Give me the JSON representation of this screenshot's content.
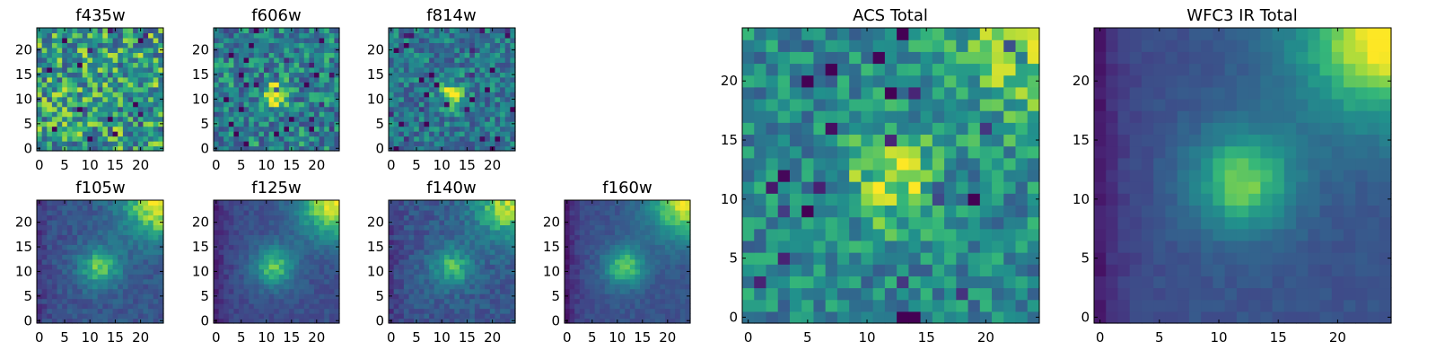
{
  "chart_data": [
    {
      "type": "heatmap",
      "title": "f435w",
      "colormap": "viridis",
      "grid": false,
      "xlim": [
        -0.5,
        24.5
      ],
      "ylim": [
        -0.5,
        24.5
      ],
      "xticks": [
        0,
        5,
        10,
        15,
        20
      ],
      "yticks": [
        0,
        5,
        10,
        15,
        20
      ],
      "pattern": {
        "bg": 0.62,
        "noise": 0.32,
        "blob_amp": 0.0,
        "blob_x": 12,
        "blob_y": 11,
        "blob_sigma": 3.0,
        "grad": [
          0.0,
          0.0
        ],
        "left_dark": 0.0,
        "seed": 11
      }
    },
    {
      "type": "heatmap",
      "title": "f606w",
      "colormap": "viridis",
      "grid": false,
      "xlim": [
        -0.5,
        24.5
      ],
      "ylim": [
        -0.5,
        24.5
      ],
      "xticks": [
        0,
        5,
        10,
        15,
        20
      ],
      "yticks": [
        0,
        5,
        10,
        15,
        20
      ],
      "pattern": {
        "bg": 0.52,
        "noise": 0.26,
        "blob_amp": 0.45,
        "blob_x": 11.5,
        "blob_y": 11,
        "blob_sigma": 1.8,
        "grad": [
          0.0,
          0.0
        ],
        "left_dark": 0.0,
        "seed": 23
      }
    },
    {
      "type": "heatmap",
      "title": "f814w",
      "colormap": "viridis",
      "grid": false,
      "xlim": [
        -0.5,
        24.5
      ],
      "ylim": [
        -0.5,
        24.5
      ],
      "xticks": [
        0,
        5,
        10,
        15,
        20
      ],
      "yticks": [
        0,
        5,
        10,
        15,
        20
      ],
      "pattern": {
        "bg": 0.48,
        "noise": 0.22,
        "blob_amp": 0.5,
        "blob_x": 12,
        "blob_y": 11,
        "blob_sigma": 1.8,
        "grad": [
          0.0,
          0.0
        ],
        "left_dark": 0.0,
        "seed": 37
      }
    },
    {
      "type": "heatmap",
      "title": "f105w",
      "colormap": "viridis",
      "grid": false,
      "xlim": [
        -0.5,
        24.5
      ],
      "ylim": [
        -0.5,
        24.5
      ],
      "xticks": [
        0,
        5,
        10,
        15,
        20
      ],
      "yticks": [
        0,
        5,
        10,
        15,
        20
      ],
      "pattern": {
        "bg": 0.33,
        "noise": 0.09,
        "blob_amp": 0.48,
        "blob_x": 12,
        "blob_y": 11,
        "blob_sigma": 3.0,
        "grad": [
          0.02,
          0.02
        ],
        "corner_amp": 0.65,
        "left_dark": 0.12,
        "seed": 41
      }
    },
    {
      "type": "heatmap",
      "title": "f125w",
      "colormap": "viridis",
      "grid": false,
      "xlim": [
        -0.5,
        24.5
      ],
      "ylim": [
        -0.5,
        24.5
      ],
      "xticks": [
        0,
        5,
        10,
        15,
        20
      ],
      "yticks": [
        0,
        5,
        10,
        15,
        20
      ],
      "pattern": {
        "bg": 0.3,
        "noise": 0.07,
        "blob_amp": 0.5,
        "blob_x": 11.5,
        "blob_y": 11,
        "blob_sigma": 3.0,
        "grad": [
          0.02,
          0.02
        ],
        "corner_amp": 0.7,
        "left_dark": 0.18,
        "seed": 53
      }
    },
    {
      "type": "heatmap",
      "title": "f140w",
      "colormap": "viridis",
      "grid": false,
      "xlim": [
        -0.5,
        24.5
      ],
      "ylim": [
        -0.5,
        24.5
      ],
      "xticks": [
        0,
        5,
        10,
        15,
        20
      ],
      "yticks": [
        0,
        5,
        10,
        15,
        20
      ],
      "pattern": {
        "bg": 0.34,
        "noise": 0.1,
        "blob_amp": 0.42,
        "blob_x": 12,
        "blob_y": 11,
        "blob_sigma": 3.0,
        "grad": [
          0.02,
          0.02
        ],
        "corner_amp": 0.6,
        "left_dark": 0.12,
        "seed": 67
      }
    },
    {
      "type": "heatmap",
      "title": "f160w",
      "colormap": "viridis",
      "grid": false,
      "xlim": [
        -0.5,
        24.5
      ],
      "ylim": [
        -0.5,
        24.5
      ],
      "xticks": [
        0,
        5,
        10,
        15,
        20
      ],
      "yticks": [
        0,
        5,
        10,
        15,
        20
      ],
      "pattern": {
        "bg": 0.32,
        "noise": 0.06,
        "blob_amp": 0.5,
        "blob_x": 11.5,
        "blob_y": 11,
        "blob_sigma": 3.0,
        "grad": [
          0.02,
          0.02
        ],
        "corner_amp": 0.65,
        "left_dark": 0.22,
        "seed": 79
      }
    },
    {
      "type": "heatmap",
      "title": "ACS Total",
      "colormap": "viridis",
      "grid": false,
      "xlim": [
        -0.5,
        24.5
      ],
      "ylim": [
        -0.5,
        24.5
      ],
      "xticks": [
        0,
        5,
        10,
        15,
        20
      ],
      "yticks": [
        0,
        5,
        10,
        15,
        20
      ],
      "pattern": {
        "bg": 0.55,
        "noise": 0.2,
        "blob_amp": 0.38,
        "blob_x": 12,
        "blob_y": 11.5,
        "blob_sigma": 2.6,
        "grad": [
          0.0,
          0.0
        ],
        "corner_amp": 0.3,
        "left_dark": 0.0,
        "seed": 97
      }
    },
    {
      "type": "heatmap",
      "title": "WFC3 IR Total",
      "colormap": "viridis",
      "grid": false,
      "xlim": [
        -0.5,
        24.5
      ],
      "ylim": [
        -0.5,
        24.5
      ],
      "xticks": [
        0,
        5,
        10,
        15,
        20
      ],
      "yticks": [
        0,
        5,
        10,
        15,
        20
      ],
      "pattern": {
        "bg": 0.32,
        "noise": 0.04,
        "blob_amp": 0.52,
        "blob_x": 12,
        "blob_y": 11.5,
        "blob_sigma": 3.2,
        "grad": [
          0.02,
          0.02
        ],
        "corner_amp": 0.7,
        "left_dark": 0.22,
        "seed": 113
      }
    }
  ]
}
